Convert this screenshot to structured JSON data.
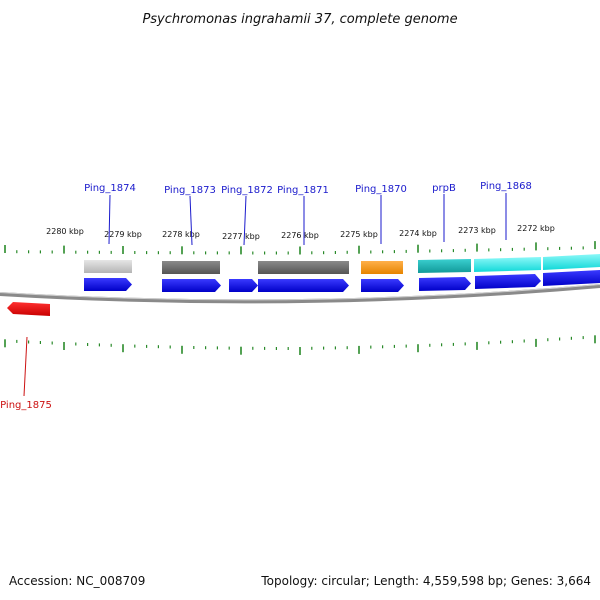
{
  "title": "Psychromonas ingrahamii 37, complete genome",
  "footer": {
    "accession": "Accession: NC_008709",
    "summary": "Topology: circular; Length: 4,559,598 bp; Genes: 3,664"
  },
  "scale_labels": [
    "2280 kbp",
    "2279 kbp",
    "2278 kbp",
    "2277 kbp",
    "2276 kbp",
    "2275 kbp",
    "2274 kbp",
    "2273 kbp",
    "2272 kbp"
  ],
  "gene_labels": [
    {
      "id": "ping1874",
      "text": "Ping_1874"
    },
    {
      "id": "ping1873",
      "text": "Ping_1873"
    },
    {
      "id": "ping1872",
      "text": "Ping_1872"
    },
    {
      "id": "ping1871",
      "text": "Ping_1871"
    },
    {
      "id": "ping1870",
      "text": "Ping_1870"
    },
    {
      "id": "prpb",
      "text": "prpB"
    },
    {
      "id": "ping1868",
      "text": "Ping_1868"
    },
    {
      "id": "ping1875",
      "text": "Ping_1875"
    }
  ],
  "colors": {
    "gene_forward": "#1111ee",
    "gene_reverse": "#ee1111",
    "feature_light_gray": "#c8c8c8",
    "feature_dark_gray": "#6a6a6a",
    "feature_orange": "#f59a1a",
    "feature_teal": "#22b8b8",
    "feature_cyan": "#22eeee",
    "tick": "#2a8a2a",
    "backbone": "#8a8a8a"
  }
}
